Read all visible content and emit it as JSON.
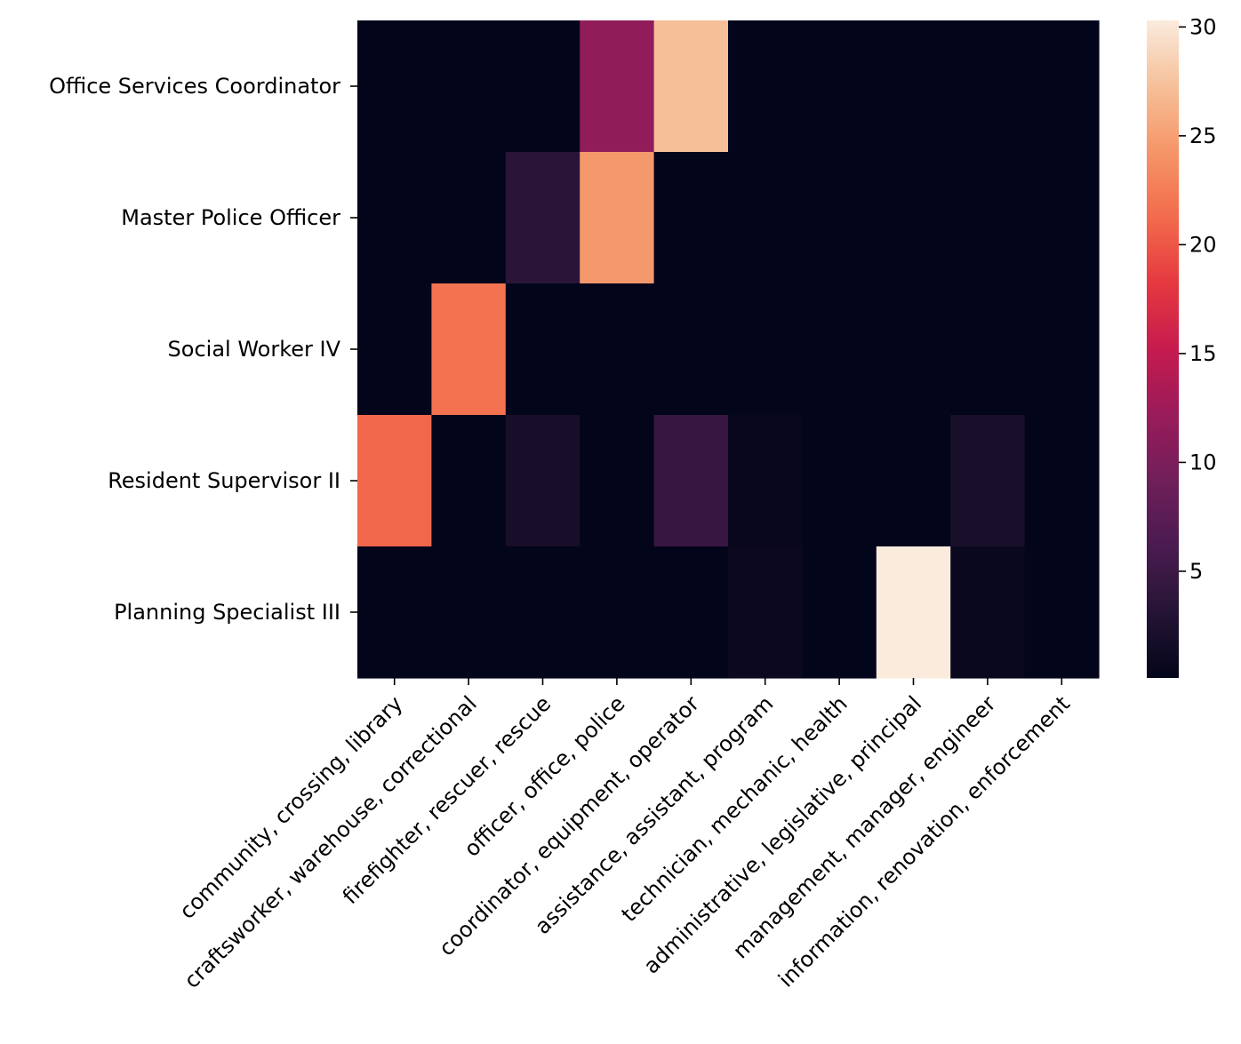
{
  "chart_data": {
    "type": "heatmap",
    "title": "",
    "xlabel": "",
    "ylabel": "",
    "rows": [
      "Office Services Coordinator",
      "Master Police Officer",
      "Social Worker IV",
      "Resident Supervisor II",
      "Planning Specialist III"
    ],
    "columns": [
      "community, crossing, library",
      "craftsworker, warehouse, correctional",
      "firefighter, rescuer, rescue",
      "officer, office, police",
      "coordinator, equipment, operator",
      "assistance, assistant, program",
      "technician, mechanic, health",
      "administrative, legislative, principal",
      "management, manager, engineer",
      "information, renovation, enforcement"
    ],
    "values": [
      [
        0.1,
        0.1,
        0.1,
        11.5,
        27.2,
        0.1,
        0.1,
        0.1,
        0.1,
        0.1
      ],
      [
        0.1,
        0.1,
        3.5,
        24.5,
        0.1,
        0.1,
        0.1,
        0.1,
        0.1,
        0.1
      ],
      [
        0.1,
        21.8,
        0.1,
        0.1,
        0.1,
        0.1,
        0.1,
        0.1,
        0.1,
        0.1
      ],
      [
        21.0,
        0.1,
        1.9,
        0.1,
        4.6,
        0.6,
        0.1,
        0.1,
        2.1,
        0.1
      ],
      [
        0.1,
        0.1,
        0.1,
        0.1,
        0.1,
        0.8,
        0.1,
        30.3,
        0.7,
        0.1
      ]
    ],
    "colorbar": {
      "min": 0.1,
      "max": 30.3,
      "ticks": [
        5,
        10,
        15,
        20,
        25,
        30
      ],
      "colormap": "rocket"
    },
    "grid": false,
    "legend": "colorbar-right"
  }
}
